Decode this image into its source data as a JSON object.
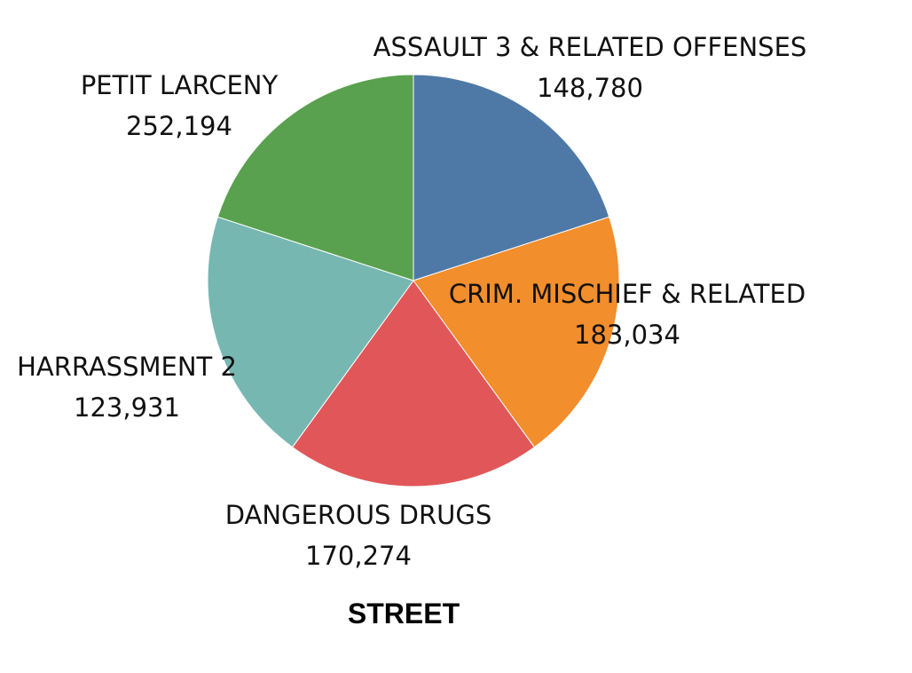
{
  "chart_data": {
    "type": "pie",
    "title": "STREET",
    "slices": [
      {
        "label": "ASSAULT 3 & RELATED OFFENSES",
        "value": 148780,
        "value_label": "148,780",
        "color": "#4e79a7"
      },
      {
        "label": "CRIM. MISCHIEF & RELATED",
        "value": 183034,
        "value_label": "183,034",
        "color": "#f28e2b"
      },
      {
        "label": "DANGEROUS DRUGS",
        "value": 170274,
        "value_label": "170,274",
        "color": "#e15759"
      },
      {
        "label": "HARRASSMENT 2",
        "value": 123931,
        "value_label": "123,931",
        "color": "#76b7b2"
      },
      {
        "label": "PETIT LARCENY",
        "value": 252194,
        "value_label": "252,194",
        "color": "#59a14f"
      }
    ]
  }
}
